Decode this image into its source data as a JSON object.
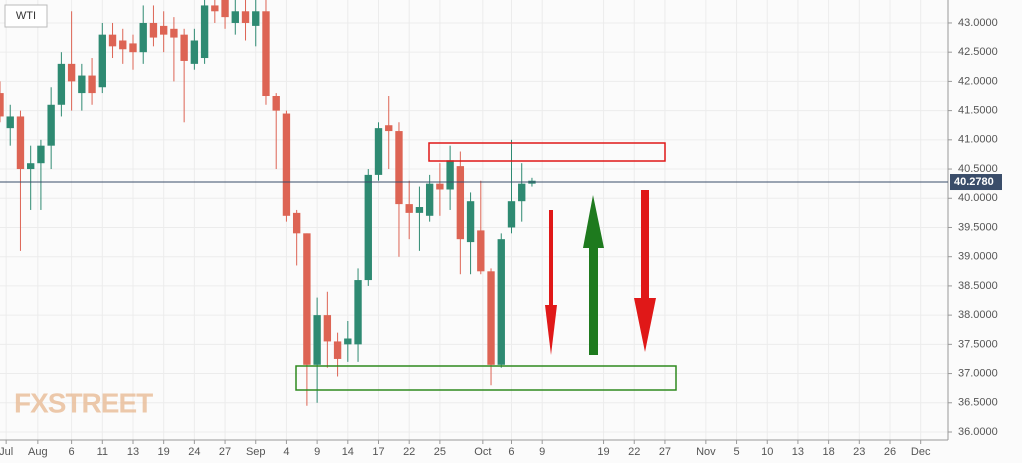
{
  "chart_data": {
    "type": "candlestick",
    "symbol": "WTI",
    "watermark": "FXSTREET",
    "up_color": "#2e8a72",
    "down_color": "#dd6454",
    "grid": true,
    "x": [
      0,
      1,
      2,
      3,
      4,
      5,
      6,
      7,
      8,
      9,
      10,
      11,
      12,
      13,
      14,
      15,
      16,
      17,
      18,
      19,
      20,
      21,
      22,
      23,
      24,
      25,
      26,
      27,
      28,
      29,
      30,
      31,
      32,
      33,
      34,
      35,
      36,
      37,
      38,
      39,
      40,
      41,
      42,
      43,
      44,
      45,
      46,
      47,
      48,
      49,
      50,
      51,
      52
    ],
    "open": [
      41.8,
      41.2,
      41.4,
      40.5,
      40.6,
      40.9,
      41.6,
      42.3,
      41.8,
      42.1,
      41.9,
      42.8,
      42.7,
      42.65,
      42.5,
      43.0,
      42.95,
      42.9,
      42.8,
      42.3,
      42.4,
      43.3,
      43.4,
      43.0,
      43.2,
      42.95,
      43.2,
      41.75,
      41.45,
      39.75,
      39.4,
      37.15,
      38.0,
      37.55,
      37.5,
      37.5,
      38.6,
      40.4,
      41.25,
      41.15,
      39.9,
      39.75,
      39.7,
      40.25,
      40.15,
      40.55,
      39.25,
      39.45,
      38.75,
      37.15,
      39.5,
      39.95,
      40.25
    ],
    "high": [
      42.0,
      41.6,
      41.5,
      40.9,
      41.0,
      41.9,
      42.5,
      43.2,
      42.3,
      42.4,
      43.0,
      43.0,
      42.9,
      42.8,
      43.3,
      43.3,
      43.2,
      43.1,
      42.9,
      42.9,
      43.4,
      43.4,
      43.4,
      43.4,
      43.4,
      43.4,
      43.4,
      41.8,
      41.5,
      39.8,
      39.4,
      38.3,
      38.4,
      37.7,
      37.9,
      38.8,
      40.5,
      41.3,
      41.75,
      41.3,
      40.3,
      40.2,
      40.4,
      40.6,
      40.9,
      40.8,
      40.1,
      40.3,
      38.8,
      39.4,
      41.0,
      40.6,
      40.35
    ],
    "low": [
      41.3,
      40.9,
      39.1,
      39.8,
      39.8,
      40.5,
      41.4,
      41.5,
      41.5,
      41.6,
      41.8,
      42.4,
      42.3,
      42.2,
      42.3,
      42.6,
      42.5,
      42.0,
      41.3,
      42.2,
      42.3,
      43.0,
      42.9,
      42.8,
      42.7,
      42.6,
      41.6,
      40.5,
      39.6,
      38.85,
      36.45,
      36.5,
      37.1,
      36.95,
      37.2,
      37.2,
      38.5,
      40.3,
      40.5,
      39.0,
      39.3,
      39.1,
      39.6,
      39.7,
      39.8,
      38.7,
      38.7,
      38.7,
      36.8,
      37.1,
      39.4,
      39.6,
      40.2
    ],
    "close": [
      41.4,
      41.4,
      40.5,
      40.6,
      40.9,
      41.6,
      42.3,
      42.0,
      42.1,
      41.8,
      42.8,
      42.6,
      42.55,
      42.5,
      43.0,
      42.75,
      42.8,
      42.75,
      42.35,
      42.7,
      43.3,
      43.2,
      43.1,
      43.2,
      43.0,
      43.2,
      41.75,
      41.5,
      39.7,
      39.4,
      37.15,
      38.0,
      37.55,
      37.25,
      37.6,
      38.6,
      40.4,
      41.2,
      41.15,
      39.9,
      39.75,
      39.85,
      40.25,
      40.15,
      40.65,
      39.3,
      39.95,
      38.75,
      37.15,
      39.3,
      39.95,
      40.25,
      40.3
    ],
    "xlim": [
      0,
      92.67
    ],
    "ylim": [
      35.863,
      43.393
    ],
    "price_line": {
      "value": 40.278,
      "label": "40.2780"
    },
    "xticks": [
      {
        "value": 0.6,
        "label": "Jul"
      },
      {
        "value": 3.7,
        "label": "Aug"
      },
      {
        "value": 7,
        "label": "6"
      },
      {
        "value": 10,
        "label": "11"
      },
      {
        "value": 13,
        "label": "13"
      },
      {
        "value": 16,
        "label": "19"
      },
      {
        "value": 19,
        "label": "24"
      },
      {
        "value": 22,
        "label": "27"
      },
      {
        "value": 25,
        "label": "Sep"
      },
      {
        "value": 28,
        "label": "4"
      },
      {
        "value": 31,
        "label": "9"
      },
      {
        "value": 34,
        "label": "14"
      },
      {
        "value": 37,
        "label": "17"
      },
      {
        "value": 40,
        "label": "22"
      },
      {
        "value": 43,
        "label": "25"
      },
      {
        "value": 47.2,
        "label": "Oct"
      },
      {
        "value": 50,
        "label": "6"
      },
      {
        "value": 53,
        "label": "9"
      },
      {
        "value": 59,
        "label": "19"
      },
      {
        "value": 62,
        "label": "22"
      },
      {
        "value": 65,
        "label": "27"
      },
      {
        "value": 69,
        "label": "Nov"
      },
      {
        "value": 72,
        "label": "5"
      },
      {
        "value": 75,
        "label": "10"
      },
      {
        "value": 78,
        "label": "13"
      },
      {
        "value": 81,
        "label": "18"
      },
      {
        "value": 84,
        "label": "23"
      },
      {
        "value": 87,
        "label": "26"
      },
      {
        "value": 90,
        "label": "Dec"
      }
    ],
    "yticks": [
      {
        "value": 36,
        "label": "36.0000"
      },
      {
        "value": 36.5,
        "label": "36.5000"
      },
      {
        "value": 37,
        "label": "37.0000"
      },
      {
        "value": 37.5,
        "label": "37.5000"
      },
      {
        "value": 38,
        "label": "38.0000"
      },
      {
        "value": 38.5,
        "label": "38.5000"
      },
      {
        "value": 39,
        "label": "39.0000"
      },
      {
        "value": 39.5,
        "label": "39.5000"
      },
      {
        "value": 40,
        "label": "40.0000"
      },
      {
        "value": 40.5,
        "label": "40.5000"
      },
      {
        "value": 41,
        "label": "41.0000"
      },
      {
        "value": 41.5,
        "label": "41.5000"
      },
      {
        "value": 42,
        "label": "42.0000"
      },
      {
        "value": 42.5,
        "label": "42.5000"
      },
      {
        "value": 43,
        "label": "43.0000"
      }
    ]
  }
}
